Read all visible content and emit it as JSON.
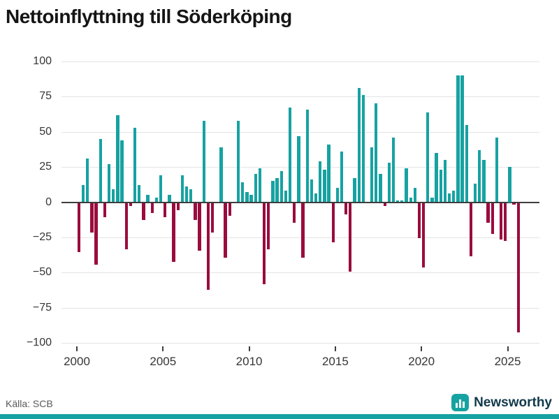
{
  "header": {
    "title": "Nettoinflyttning till Söderköping"
  },
  "footer": {
    "source": "Källa: SCB",
    "brand": "Newsworthy"
  },
  "colors": {
    "positive": "#17a2a2",
    "negative": "#9a0c3e",
    "grid": "#e4e4e4",
    "zero_line": "#3d3d3d",
    "brand_text": "#123a4c"
  },
  "chart_data": {
    "type": "bar",
    "title": "Nettoinflyttning till Söderköping",
    "source": "Källa: SCB",
    "x": {
      "unit": "quarter",
      "start": "2000Q1",
      "end": "2025Q3"
    },
    "xlabel": "",
    "ylabel": "",
    "x_tick_labels": [
      "2000",
      "2005",
      "2010",
      "2015",
      "2020",
      "2025"
    ],
    "y_tick_labels": [
      "100",
      "75",
      "50",
      "25",
      "0",
      "−25",
      "−50",
      "−75",
      "−100"
    ],
    "y_ticks": [
      100,
      75,
      50,
      25,
      0,
      -25,
      -50,
      -75,
      -100
    ],
    "ylim": [
      -103,
      104
    ],
    "grid": true,
    "legend": false,
    "values": [
      -35,
      12,
      31,
      -21,
      -44,
      45,
      -10,
      27,
      9,
      62,
      44,
      -33,
      -2,
      53,
      12,
      -12,
      5,
      -7,
      3,
      19,
      -10,
      5,
      -42,
      -5,
      19,
      11,
      9,
      -12,
      -34,
      58,
      -62,
      -21,
      0,
      39,
      -39,
      -9,
      0,
      58,
      14,
      7,
      5,
      20,
      24,
      -58,
      -33,
      15,
      17,
      22,
      8,
      67,
      -14,
      47,
      -39,
      66,
      16,
      6,
      29,
      23,
      41,
      -28,
      10,
      36,
      -8,
      -49,
      17,
      81,
      76,
      0,
      39,
      70,
      20,
      -2,
      28,
      46,
      1,
      1,
      24,
      3,
      10,
      -25,
      -46,
      64,
      3,
      35,
      23,
      30,
      6,
      8,
      90,
      90,
      55,
      -38,
      13,
      37,
      30,
      -14,
      -22,
      46,
      -26,
      -27,
      25,
      -1,
      -92
    ]
  }
}
